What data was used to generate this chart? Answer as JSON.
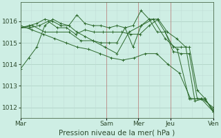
{
  "background_color": "#ceeee4",
  "grid_color_major": "#aaccc0",
  "grid_color_minor": "#c0ddd6",
  "line_color": "#2d6a2d",
  "xlabel": "Pression niveau de la mer( hPa )",
  "ylim": [
    1011.5,
    1016.9
  ],
  "yticks": [
    1012,
    1013,
    1014,
    1015,
    1016
  ],
  "xtick_labels": [
    "Mar",
    "Sam",
    "Mer",
    "Jeu",
    "Ven"
  ],
  "xtick_positions": [
    0,
    4,
    5.5,
    7,
    9
  ],
  "vline_positions": [
    4,
    5.5,
    7,
    9
  ],
  "series": [
    [
      1013.8,
      1014.3,
      1014.8,
      1015.8,
      1016.1,
      1015.9,
      1015.8,
      1015.5,
      1015.3,
      1015.1,
      1015.0,
      1015.0,
      1015.0,
      1015.7,
      1014.8,
      1015.8,
      1016.1,
      1016.1,
      1015.5,
      1014.6,
      1014.5,
      1014.5,
      1012.4,
      1012.4,
      1011.8
    ],
    [
      1015.7,
      1015.8,
      1015.9,
      1016.1,
      1016.0,
      1015.8,
      1015.8,
      1016.3,
      1015.9,
      1015.8,
      1015.8,
      1015.7,
      1015.8,
      1015.7,
      1015.8,
      1016.5,
      1016.1,
      1015.5,
      1015.5,
      1014.8,
      1014.8,
      1014.8,
      1012.8,
      1012.4,
      1011.8
    ],
    [
      1015.7,
      1015.7,
      1015.8,
      1016.0,
      1015.7,
      1015.7,
      1015.4,
      1015.6,
      1015.5,
      1015.5,
      1015.5,
      1015.5,
      1015.4,
      1015.4,
      1015.8,
      1016.1,
      1015.5,
      1015.2,
      1014.8,
      1012.3,
      1012.4,
      1011.9
    ],
    [
      1015.7,
      1015.8,
      1015.5,
      1015.5,
      1015.5,
      1015.1,
      1015.1,
      1014.8,
      1014.5,
      1015.5,
      1015.8,
      1016.1,
      1015.2,
      1014.7,
      1012.4,
      1012.4,
      1011.8
    ],
    [
      1015.8,
      1015.6,
      1015.4,
      1015.2,
      1015.0,
      1014.8,
      1014.7,
      1014.5,
      1014.3,
      1014.2,
      1014.3,
      1014.5,
      1014.5,
      1014.0,
      1013.6,
      1012.4,
      1012.4,
      1012.0
    ]
  ],
  "series_xranges": [
    [
      0,
      9
    ],
    [
      0,
      9
    ],
    [
      0,
      9
    ],
    [
      0,
      9
    ],
    [
      0,
      9
    ]
  ],
  "xlabel_fontsize": 7.5,
  "tick_fontsize": 6.5
}
